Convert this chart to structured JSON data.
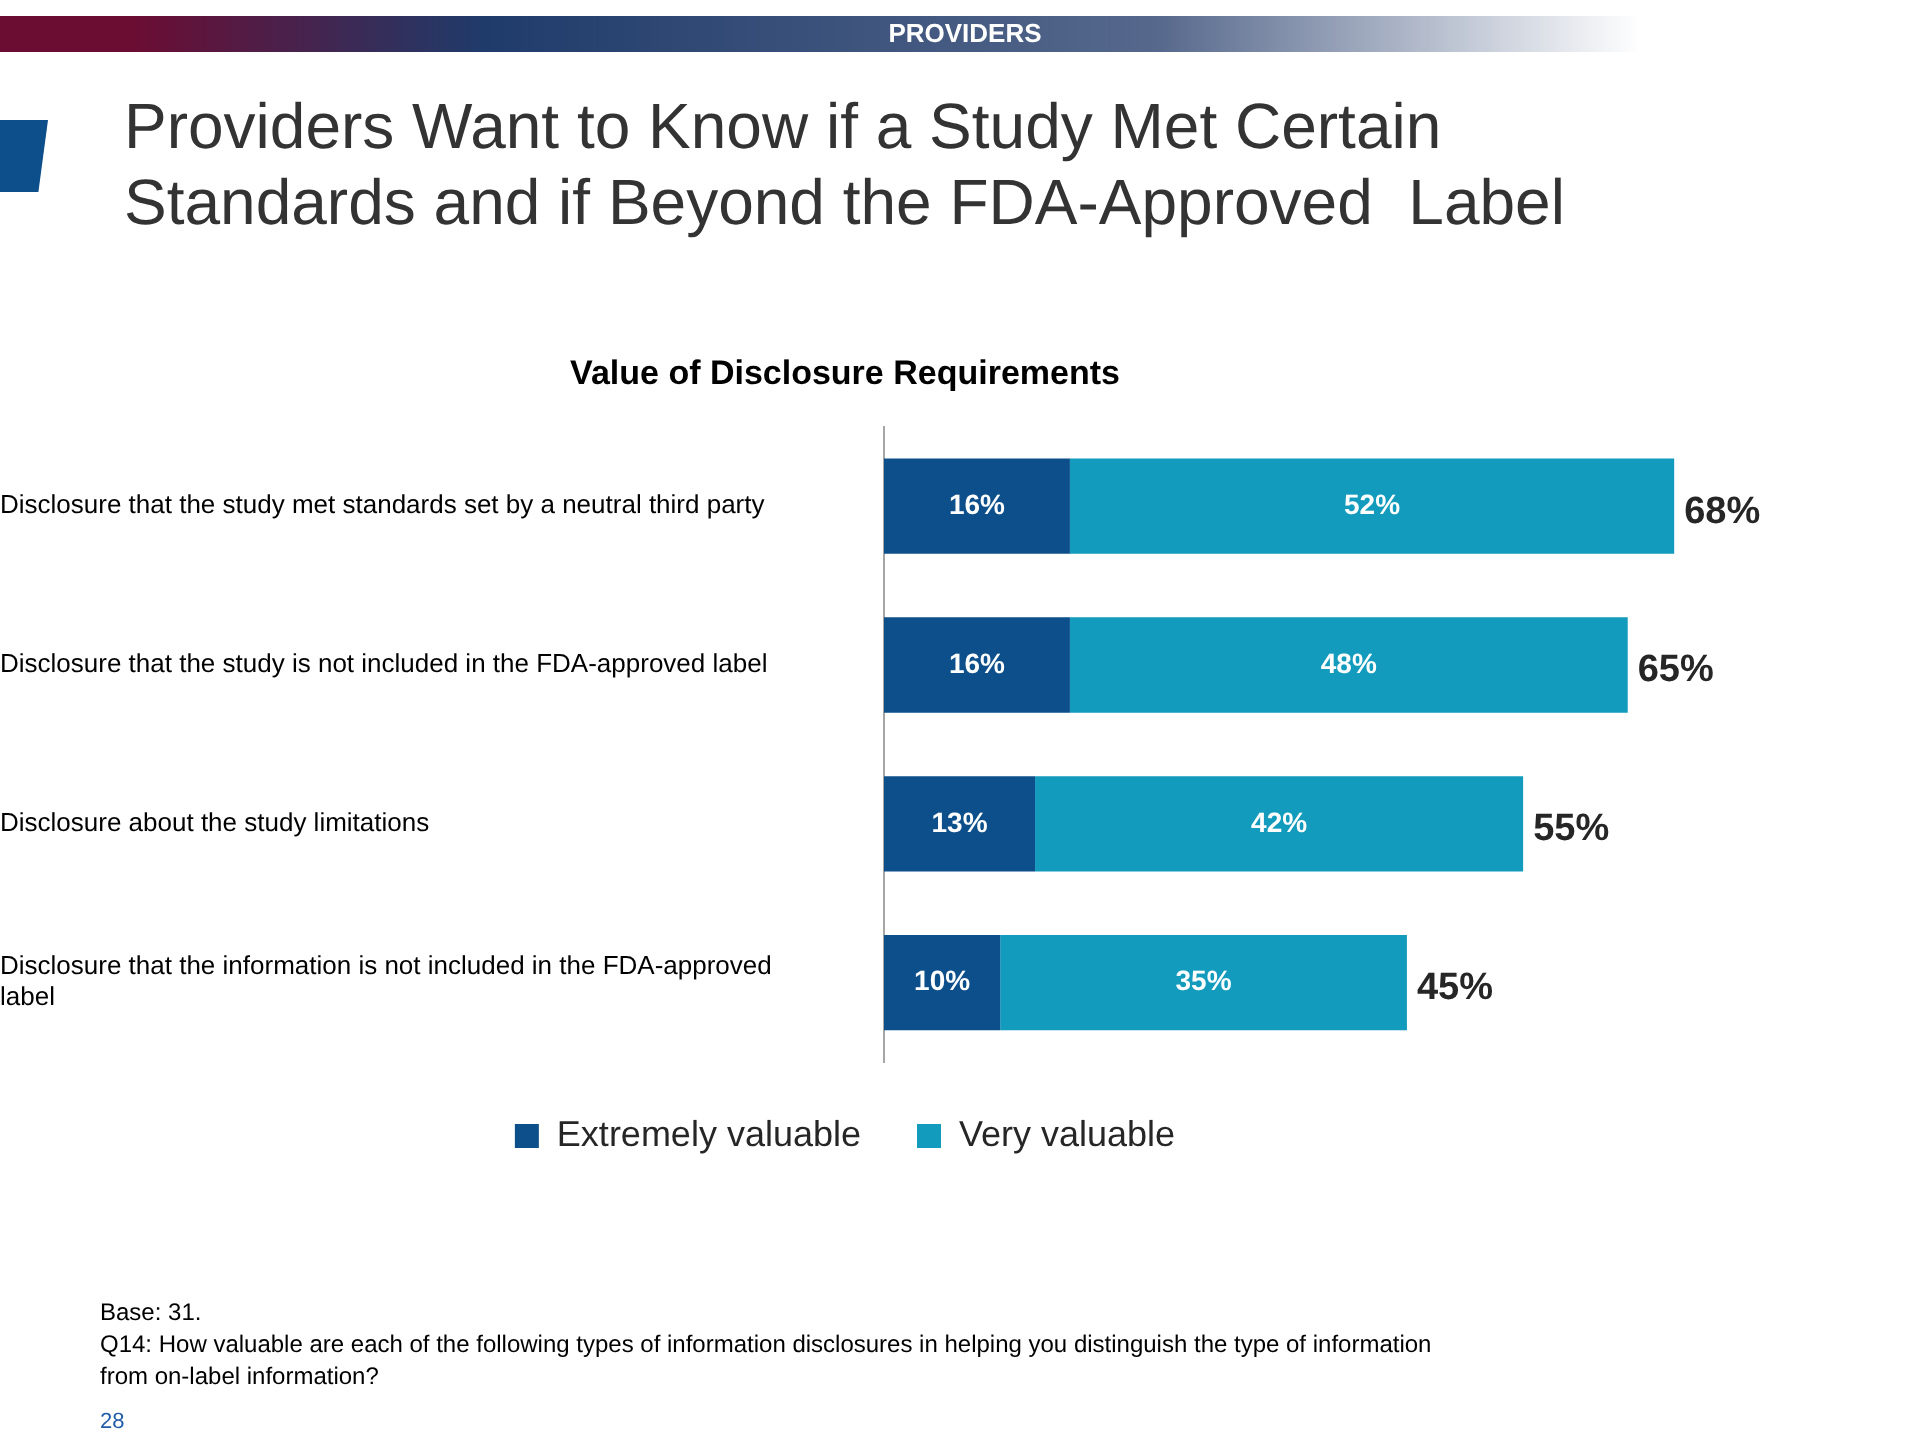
{
  "chart_data": {
    "type": "bar",
    "orientation": "horizontal",
    "stacked": true,
    "title": "Providers Want to Know if a Study Met Certain Standards and if Beyond the FDA-Approved  Label",
    "subtitle": "Value of Disclosure Requirements",
    "categories": [
      "Disclosure that the study met standards set by a neutral third party",
      "Disclosure that the study is not included in the FDA-approved label",
      "Disclosure about the study limitations",
      "Disclosure that the information is not included in the FDA-approved label"
    ],
    "series": [
      {
        "name": "Extremely valuable",
        "color": "#0d4f8b",
        "values": [
          16,
          16,
          13,
          10
        ],
        "value_labels": [
          "16%",
          "16%",
          "13%",
          "10%"
        ]
      },
      {
        "name": "Very valuable",
        "color": "#129bbd",
        "values": [
          52,
          48,
          42,
          35
        ],
        "value_labels": [
          "52%",
          "48%",
          "42%",
          "35%"
        ]
      }
    ],
    "totals": [
      "68%",
      "65%",
      "55%",
      "45%"
    ],
    "legend": "bottom",
    "grid": false,
    "annotations": [
      "PROVIDERS",
      "Base: 31.",
      "Q14: How valuable are each of the following types of information disclosures in helping you distinguish the type of information from on-label information?",
      "28"
    ]
  }
}
